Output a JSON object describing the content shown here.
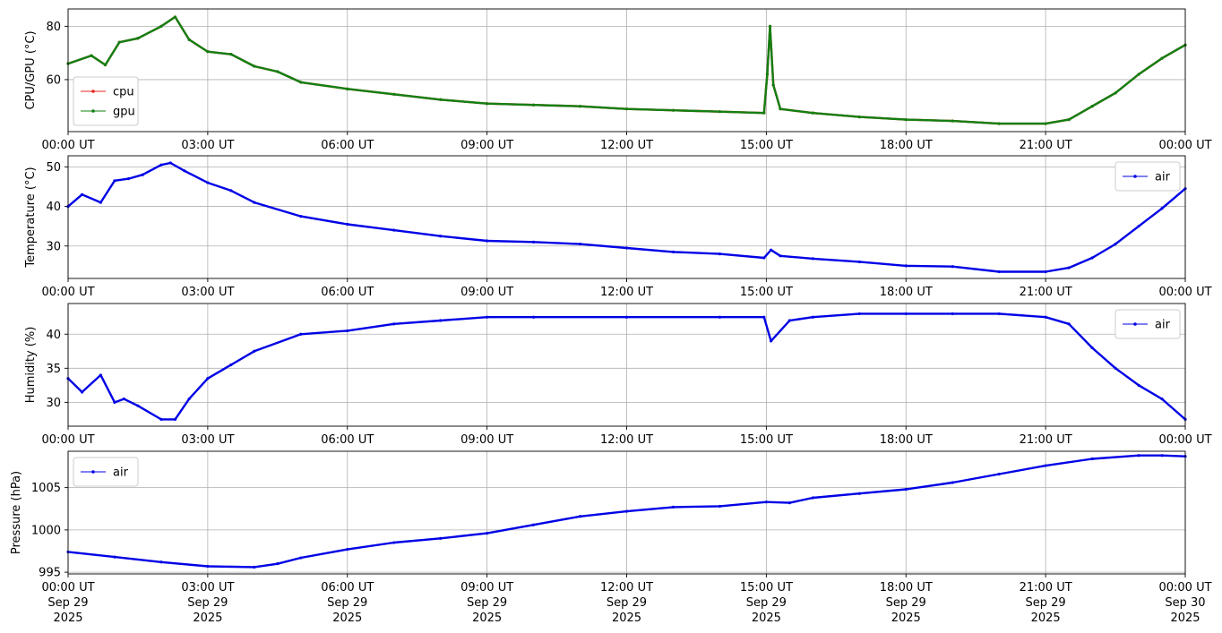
{
  "chart_data": [
    {
      "type": "line",
      "ylabel": "CPU/GPU (°C)",
      "ylim": [
        40.5,
        86.5
      ],
      "yticks": [
        60,
        80
      ],
      "x_hours": [
        0,
        0.5,
        0.8,
        1.1,
        1.5,
        2.0,
        2.3,
        2.6,
        3.0,
        3.5,
        4.0,
        4.5,
        5.0,
        6.0,
        7.0,
        8.0,
        9.0,
        10.0,
        11.0,
        12.0,
        13.0,
        14.0,
        14.95,
        15.02,
        15.08,
        15.15,
        15.3,
        16.0,
        17.0,
        18.0,
        19.0,
        20.0,
        21.0,
        21.5,
        22.0,
        22.5,
        23.0,
        23.5,
        24.0
      ],
      "legend": {
        "position": "lower left"
      },
      "series": [
        {
          "name": "cpu",
          "color": "#e8231c",
          "values": [
            66,
            69,
            65.5,
            74,
            75.5,
            80,
            83.5,
            75,
            70.5,
            69.5,
            65,
            63,
            59,
            56.5,
            54.5,
            52.5,
            51,
            50.5,
            50,
            49,
            48.5,
            48,
            47.5,
            62,
            80,
            58,
            49,
            47.5,
            46,
            45,
            44.5,
            43.5,
            43.5,
            45,
            50,
            55,
            62,
            68,
            73
          ]
        },
        {
          "name": "gpu",
          "color": "#128012",
          "values": [
            66,
            69,
            65.5,
            74,
            75.5,
            80,
            83.5,
            75,
            70.5,
            69.5,
            65,
            63,
            59,
            56.5,
            54.5,
            52.5,
            51,
            50.5,
            50,
            49,
            48.5,
            48,
            47.5,
            62,
            80,
            58,
            49,
            47.5,
            46,
            45,
            44.5,
            43.5,
            43.5,
            45,
            50,
            55,
            62,
            68,
            73
          ]
        }
      ]
    },
    {
      "type": "line",
      "ylabel": "Temperature (°C)",
      "ylim": [
        21.8,
        52.8
      ],
      "yticks": [
        30,
        40,
        50
      ],
      "x_hours": [
        0,
        0.3,
        0.7,
        1.0,
        1.3,
        1.6,
        2.0,
        2.2,
        2.5,
        3.0,
        3.5,
        4.0,
        5.0,
        6.0,
        7.0,
        8.0,
        9.0,
        10.0,
        11.0,
        12.0,
        13.0,
        14.0,
        14.95,
        15.1,
        15.3,
        16.0,
        17.0,
        18.0,
        19.0,
        20.0,
        21.0,
        21.5,
        22.0,
        22.5,
        23.0,
        23.5,
        24.0
      ],
      "legend": {
        "position": "upper right"
      },
      "series": [
        {
          "name": "air",
          "color": "#0000e6",
          "values": [
            40,
            43,
            41,
            46.5,
            47,
            48,
            50.5,
            51,
            49,
            46,
            44,
            41,
            37.5,
            35.5,
            34,
            32.5,
            31.3,
            31,
            30.5,
            29.5,
            28.5,
            28,
            27,
            29,
            27.5,
            26.8,
            26,
            25,
            24.8,
            23.5,
            23.5,
            24.5,
            27,
            30.5,
            35,
            39.5,
            44.5
          ]
        }
      ]
    },
    {
      "type": "line",
      "ylabel": "Humidity (%)",
      "ylim": [
        26.5,
        44.5
      ],
      "yticks": [
        30,
        35,
        40
      ],
      "x_hours": [
        0,
        0.3,
        0.7,
        1.0,
        1.2,
        1.5,
        2.0,
        2.3,
        2.6,
        3.0,
        3.5,
        4.0,
        5.0,
        6.0,
        7.0,
        8.0,
        9.0,
        10.0,
        12.0,
        14.0,
        14.95,
        15.1,
        15.5,
        16.0,
        17.0,
        18.0,
        19.0,
        20.0,
        21.0,
        21.5,
        22.0,
        22.5,
        23.0,
        23.5,
        24.0
      ],
      "legend": {
        "position": "upper right"
      },
      "series": [
        {
          "name": "air",
          "color": "#0000e6",
          "values": [
            33.5,
            31.5,
            34,
            30,
            30.5,
            29.5,
            27.5,
            27.5,
            30.5,
            33.5,
            35.5,
            37.5,
            40,
            40.5,
            41.5,
            42,
            42.5,
            42.5,
            42.5,
            42.5,
            42.5,
            39,
            42,
            42.5,
            43,
            43,
            43,
            43,
            42.5,
            41.5,
            38,
            35,
            32.5,
            30.5,
            27.5
          ]
        }
      ]
    },
    {
      "type": "line",
      "ylabel": "Pressure (hPa)",
      "ylim": [
        994.8,
        1009.3
      ],
      "yticks": [
        995,
        1000,
        1005
      ],
      "x_hours": [
        0,
        1.0,
        2.0,
        3.0,
        4.0,
        4.5,
        5.0,
        6.0,
        7.0,
        8.0,
        9.0,
        10.0,
        11.0,
        12.0,
        13.0,
        14.0,
        15.0,
        15.5,
        16.0,
        17.0,
        18.0,
        19.0,
        20.0,
        21.0,
        22.0,
        23.0,
        23.5,
        24.0
      ],
      "legend": {
        "position": "upper left"
      },
      "series": [
        {
          "name": "air",
          "color": "#0000e6",
          "values": [
            997.4,
            996.8,
            996.2,
            995.7,
            995.6,
            996,
            996.7,
            997.7,
            998.5,
            999,
            999.6,
            1000.6,
            1001.6,
            1002.2,
            1002.7,
            1002.8,
            1003.3,
            1003.2,
            1003.8,
            1004.3,
            1004.8,
            1005.6,
            1006.6,
            1007.6,
            1008.4,
            1008.8,
            1008.8,
            1008.7
          ]
        }
      ]
    }
  ],
  "x_axis": {
    "tick_times": [
      "00:00 UT",
      "03:00 UT",
      "06:00 UT",
      "09:00 UT",
      "12:00 UT",
      "15:00 UT",
      "18:00 UT",
      "21:00 UT",
      "00:00 UT"
    ],
    "tick_dates": [
      "Sep 29",
      "Sep 29",
      "Sep 29",
      "Sep 29",
      "Sep 29",
      "Sep 29",
      "Sep 29",
      "Sep 29",
      "Sep 30"
    ],
    "tick_years": [
      "2025",
      "2025",
      "2025",
      "2025",
      "2025",
      "2025",
      "2025",
      "2025",
      "2025"
    ]
  },
  "grid": true
}
